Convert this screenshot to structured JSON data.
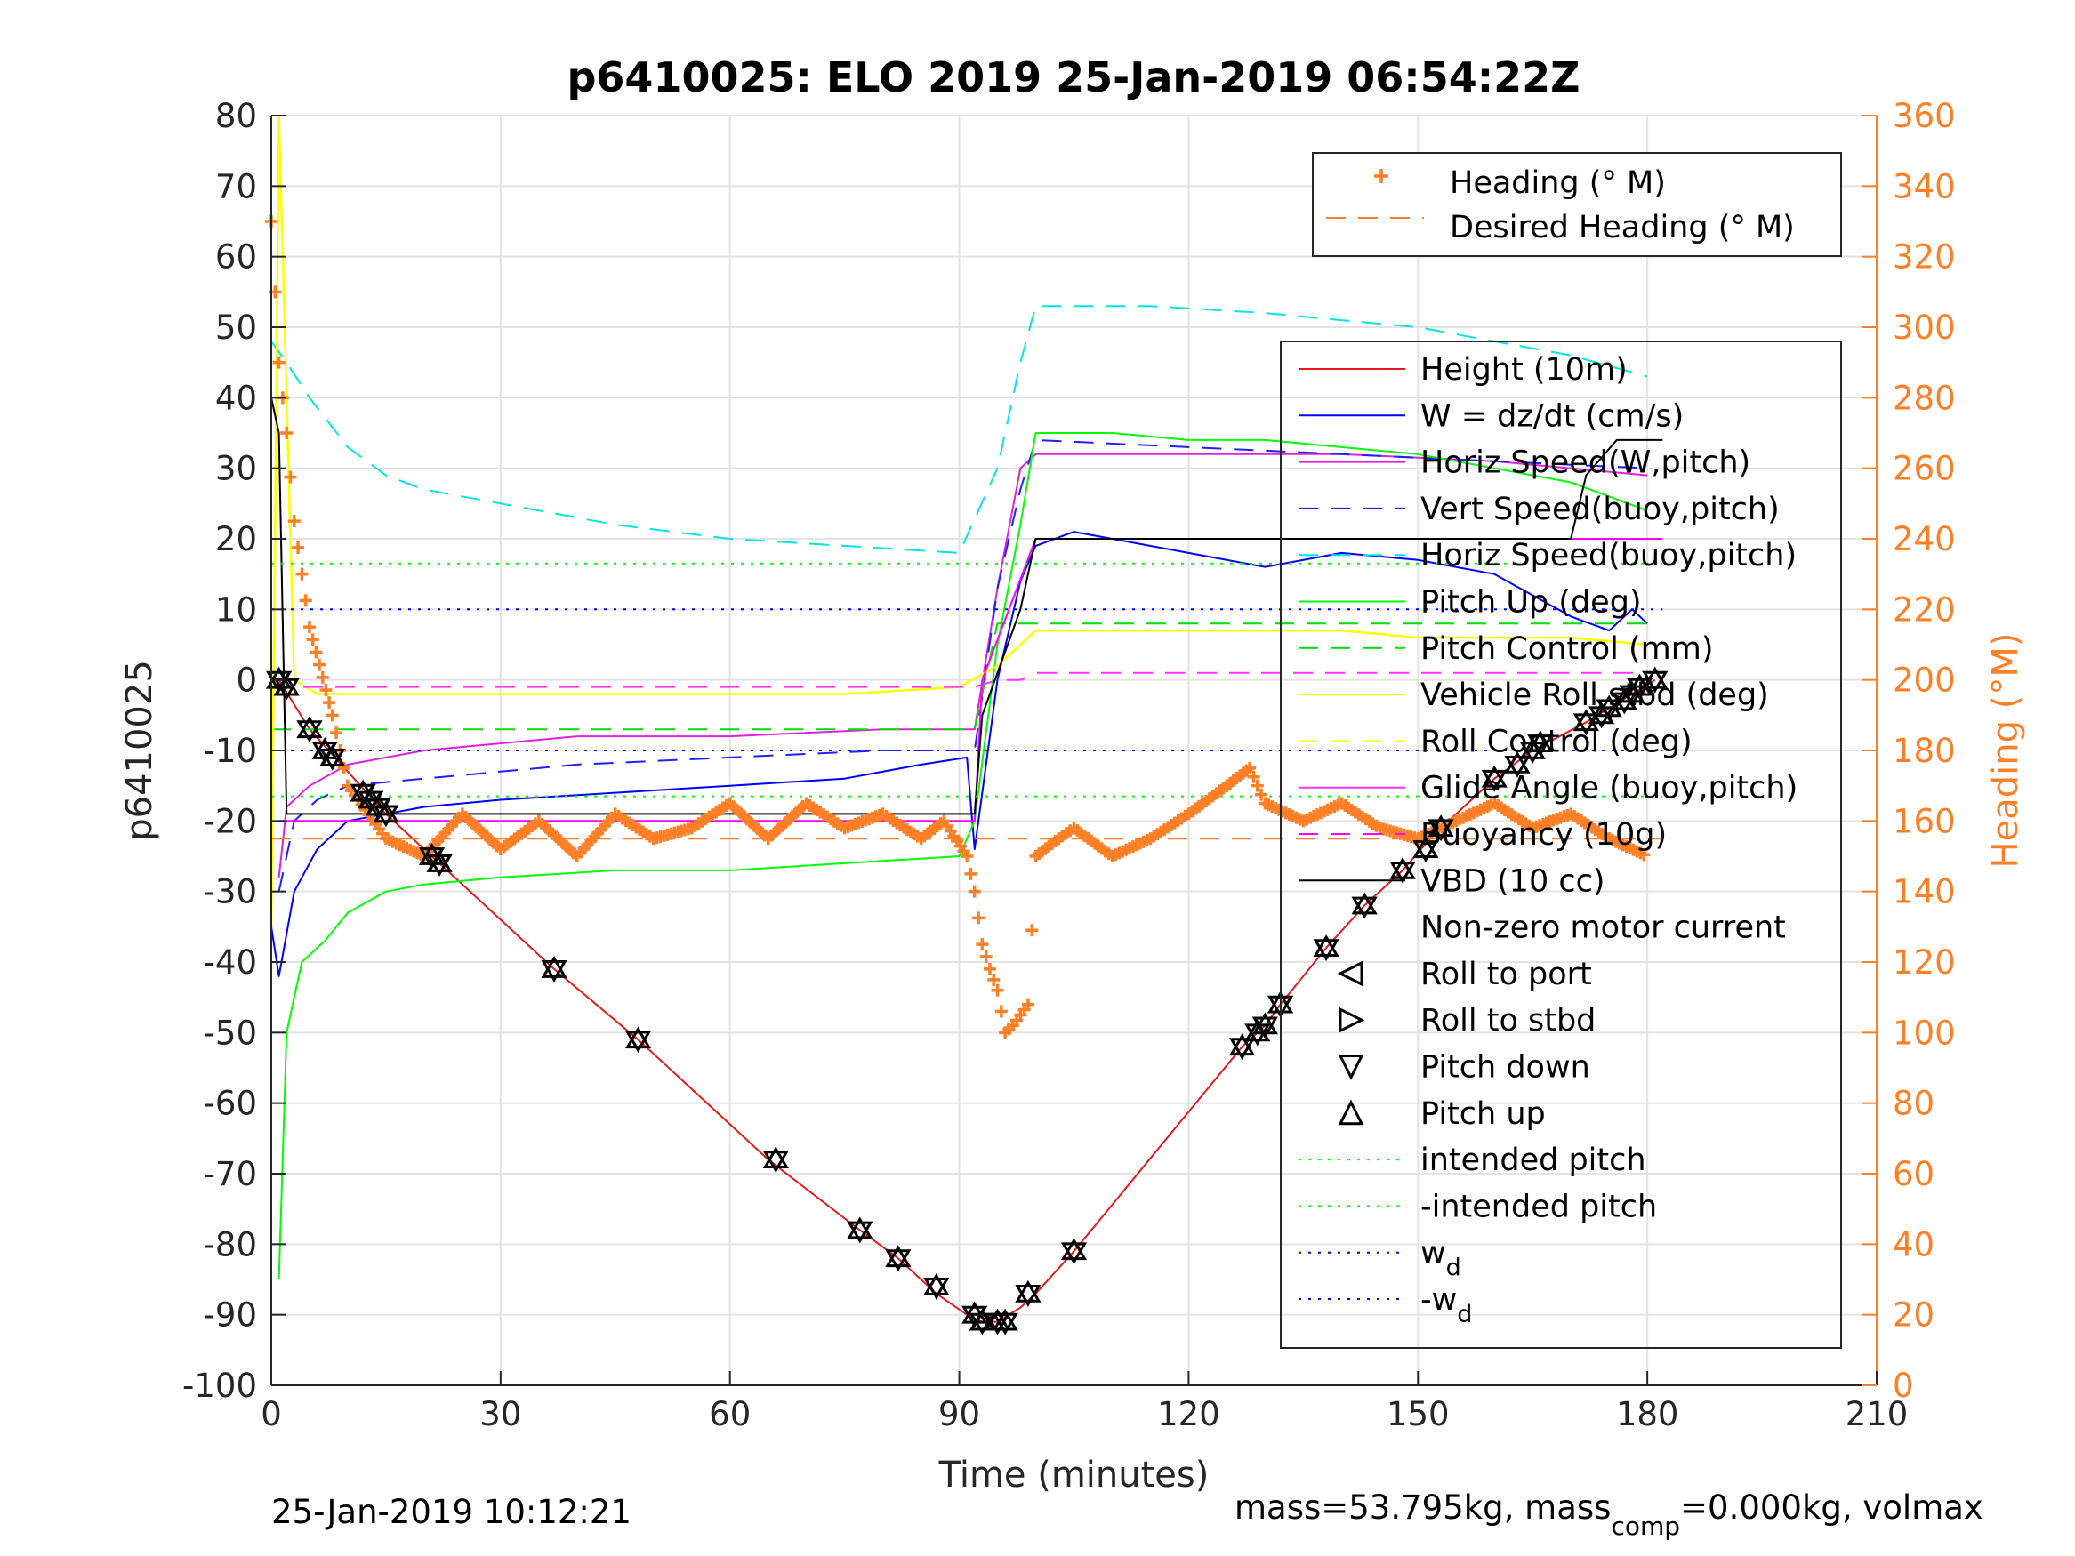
{
  "chart_data": {
    "type": "line",
    "title": "p6410025: ELO 2019 25-Jan-2019 06:54:22Z",
    "xlabel": "Time (minutes)",
    "ylabel": "p6410025",
    "y2label": "Heading (°M)",
    "xlim": [
      0,
      210
    ],
    "ylim": [
      -100,
      80
    ],
    "y2lim": [
      0,
      360
    ],
    "xticks": [
      "0",
      "30",
      "60",
      "90",
      "120",
      "150",
      "180",
      "210"
    ],
    "yticks": [
      "-100",
      "-90",
      "-80",
      "-70",
      "-60",
      "-50",
      "-40",
      "-30",
      "-20",
      "-10",
      "0",
      "10",
      "20",
      "30",
      "40",
      "50",
      "60",
      "70",
      "80"
    ],
    "y2ticks": [
      "0",
      "20",
      "40",
      "60",
      "80",
      "100",
      "120",
      "140",
      "160",
      "180",
      "200",
      "220",
      "240",
      "260",
      "280",
      "300",
      "320",
      "340",
      "360"
    ],
    "grid": true,
    "colors": {
      "height": "#e41a1c",
      "w": "#0000ff",
      "horiz_speed_w": "#e020e0",
      "vert_speed_buoy": "#2020ff",
      "horiz_speed_buoy": "#00e5e5",
      "pitch_up": "#00ff00",
      "pitch_control": "#00dd00",
      "vehicle_roll": "#ffff00",
      "roll_control": "#ffff33",
      "glide_angle": "#ff33ff",
      "buoyancy": "#ff00ff",
      "vbd": "#000000",
      "heading": "#ff7f27",
      "markers": "#000000"
    },
    "legend_heading": {
      "placement": "top-right",
      "entries": [
        "Heading (° M)",
        "Desired Heading (° M)"
      ]
    },
    "legend_main": {
      "placement": "right",
      "entries": [
        "Height (10m)",
        "W = dz/dt (cm/s)",
        "Horiz Speed(W,pitch)",
        "Vert Speed(buoy,pitch)",
        "Horiz Speed(buoy,pitch)",
        "Pitch Up (deg)",
        "Pitch Control (mm)",
        "Vehicle Roll stbd (deg)",
        "Roll Control (deg)",
        "Glide Angle (buoy,pitch)",
        "Buoyancy (10g)",
        "VBD (10 cc)",
        "Non-zero motor current",
        "Roll to port",
        "Roll to stbd",
        "Pitch down",
        "Pitch up",
        "intended pitch",
        "-intended pitch",
        "w",
        "-w"
      ],
      "subscript": "d"
    },
    "series": [
      {
        "name": "Height (10m)",
        "x": [
          0,
          1,
          5,
          10,
          15,
          22,
          37,
          48,
          65,
          77,
          82,
          87,
          91,
          93,
          95,
          98,
          100,
          105,
          127,
          130,
          132,
          138,
          143,
          148,
          152,
          160,
          165,
          172,
          178,
          181
        ],
        "y": [
          0,
          0,
          -7,
          -13,
          -19,
          -26,
          -41,
          -51,
          -68,
          -78,
          -82,
          -87,
          -90,
          -91,
          -91,
          -89,
          -87,
          -81,
          -52,
          -49,
          -46,
          -38,
          -32,
          -27,
          -22,
          -14,
          -10,
          -6,
          -2,
          0
        ]
      },
      {
        "name": "W = dz/dt (cm/s)",
        "x": [
          0,
          1,
          3,
          6,
          10,
          20,
          30,
          45,
          60,
          75,
          85,
          91,
          92,
          95,
          98,
          100,
          105,
          110,
          120,
          130,
          140,
          150,
          160,
          170,
          175,
          178,
          180
        ],
        "y": [
          -35,
          -42,
          -30,
          -24,
          -20,
          -18,
          -17,
          -16,
          -15,
          -14,
          -12,
          -11,
          -24,
          0,
          14,
          19,
          21,
          20,
          18,
          16,
          18,
          17,
          15,
          9,
          7,
          10,
          8
        ]
      },
      {
        "name": "Horiz Speed(W,pitch)",
        "x": [
          1,
          2,
          5,
          10,
          20,
          40,
          60,
          80,
          92,
          95,
          98,
          100,
          120,
          140,
          160,
          170,
          180
        ],
        "y": [
          -28,
          -18,
          -15,
          -12,
          -10,
          -8,
          -8,
          -7,
          -7,
          13,
          30,
          32,
          32,
          32,
          31,
          30,
          29
        ]
      },
      {
        "name": "Vert Speed(buoy,pitch)",
        "x": [
          1,
          3,
          6,
          10,
          20,
          40,
          60,
          80,
          92,
          95,
          98,
          100,
          120,
          140,
          160,
          180
        ],
        "y": [
          -30,
          -20,
          -17,
          -15,
          -14,
          -12,
          -11,
          -10,
          -10,
          13,
          27,
          34,
          33,
          32,
          31,
          30
        ]
      },
      {
        "name": "Horiz Speed(buoy,pitch)",
        "x": [
          0,
          2,
          5,
          10,
          15,
          20,
          30,
          45,
          60,
          75,
          90,
          95,
          98,
          100,
          115,
          130,
          140,
          150,
          160,
          170,
          180
        ],
        "y": [
          48,
          45,
          40,
          33,
          29,
          27,
          25,
          22,
          20,
          19,
          18,
          30,
          45,
          53,
          53,
          52,
          51,
          50,
          48,
          46,
          43
        ]
      },
      {
        "name": "Pitch Up (deg)",
        "x": [
          1,
          2,
          4,
          7,
          10,
          15,
          20,
          30,
          45,
          60,
          75,
          90,
          92,
          95,
          98,
          100,
          110,
          120,
          130,
          140,
          150,
          160,
          170,
          180
        ],
        "y": [
          -85,
          -50,
          -40,
          -37,
          -33,
          -30,
          -29,
          -28,
          -27,
          -27,
          -26,
          -25,
          -20,
          5,
          22,
          35,
          35,
          34,
          34,
          33,
          32,
          30,
          28,
          24
        ]
      },
      {
        "name": "Pitch Control (mm)",
        "x": [
          0,
          5,
          20,
          40,
          60,
          80,
          92,
          95,
          100,
          120,
          140,
          160,
          180
        ],
        "y": [
          -7,
          -7,
          -7,
          -7,
          -7,
          -7,
          -7,
          8,
          8,
          8,
          8,
          8,
          8
        ]
      },
      {
        "name": "Vehicle Roll stbd (deg)",
        "x": [
          0,
          1,
          3,
          6,
          10,
          20,
          30,
          45,
          60,
          75,
          90,
          95,
          100,
          110,
          120,
          130,
          140,
          150,
          160,
          170,
          180
        ],
        "y": [
          -35,
          80,
          0,
          -2,
          -2,
          -2,
          -2,
          -2,
          -2,
          -2,
          -1,
          2,
          7,
          7,
          7,
          7,
          7,
          6,
          6,
          6,
          5
        ]
      },
      {
        "name": "Glide Angle (buoy,pitch)",
        "x": [
          0,
          2,
          5,
          10,
          15,
          20,
          30,
          45,
          60,
          75,
          90,
          92,
          95,
          98,
          100,
          120,
          140,
          160,
          180
        ],
        "y": [
          -1,
          -1,
          -1,
          -1,
          -1,
          -1,
          -1,
          -1,
          -1,
          -1,
          -1,
          -1,
          0,
          0,
          1,
          1,
          1,
          1,
          1
        ]
      },
      {
        "name": "Buoyancy (10g)",
        "x": [
          1,
          2,
          92,
          93,
          100,
          182
        ],
        "y": [
          -20,
          -20,
          -20,
          0,
          20,
          20
        ]
      },
      {
        "name": "VBD (10 cc)",
        "x": [
          0,
          1,
          2,
          92,
          93,
          98,
          100,
          170,
          172,
          176,
          180,
          182
        ],
        "y": [
          40,
          35,
          -19,
          -19,
          -5,
          10,
          20,
          20,
          29,
          34,
          34,
          34
        ]
      },
      {
        "name": "Heading (° M)",
        "axis": "right",
        "x": [
          0,
          1,
          2,
          3,
          5,
          8,
          10,
          15,
          20,
          25,
          30,
          35,
          40,
          45,
          50,
          55,
          60,
          65,
          70,
          75,
          80,
          85,
          88,
          91,
          92,
          93,
          94,
          95,
          96,
          97,
          98,
          99,
          100,
          103,
          105,
          110,
          115,
          120,
          125,
          128,
          130,
          135,
          140,
          145,
          150,
          155,
          160,
          165,
          170,
          175,
          180
        ],
        "y": [
          330,
          290,
          270,
          245,
          215,
          190,
          170,
          155,
          150,
          162,
          152,
          160,
          150,
          162,
          155,
          158,
          165,
          155,
          165,
          158,
          162,
          155,
          160,
          150,
          140,
          125,
          118,
          112,
          100,
          102,
          105,
          108,
          150,
          155,
          158,
          150,
          155,
          162,
          170,
          175,
          165,
          160,
          165,
          158,
          155,
          160,
          165,
          158,
          162,
          155,
          150
        ]
      },
      {
        "name": "Desired Heading (° M)",
        "axis": "right",
        "x": [
          0,
          90,
          182
        ],
        "y": [
          155,
          155,
          155
        ]
      },
      {
        "name": "intended pitch",
        "x": [
          0,
          182
        ],
        "y": [
          16.5,
          16.5
        ]
      },
      {
        "name": "-intended pitch",
        "x": [
          0,
          182
        ],
        "y": [
          -16.5,
          -16.5
        ]
      },
      {
        "name": "w",
        "x": [
          0,
          182
        ],
        "y": [
          10,
          10
        ]
      },
      {
        "name": "-w",
        "x": [
          0,
          182
        ],
        "y": [
          -10,
          -10
        ]
      }
    ],
    "markers": [
      {
        "x": 1,
        "y": 0
      },
      {
        "x": 2,
        "y": -1
      },
      {
        "x": 5,
        "y": -7
      },
      {
        "x": 7,
        "y": -10
      },
      {
        "x": 8,
        "y": -11
      },
      {
        "x": 12,
        "y": -16
      },
      {
        "x": 13,
        "y": -17
      },
      {
        "x": 14,
        "y": -18
      },
      {
        "x": 15,
        "y": -19
      },
      {
        "x": 21,
        "y": -25
      },
      {
        "x": 22,
        "y": -26
      },
      {
        "x": 37,
        "y": -41
      },
      {
        "x": 48,
        "y": -51
      },
      {
        "x": 66,
        "y": -68
      },
      {
        "x": 77,
        "y": -78
      },
      {
        "x": 82,
        "y": -82
      },
      {
        "x": 87,
        "y": -86
      },
      {
        "x": 92,
        "y": -90
      },
      {
        "x": 93,
        "y": -91
      },
      {
        "x": 95,
        "y": -91
      },
      {
        "x": 96,
        "y": -91
      },
      {
        "x": 99,
        "y": -87
      },
      {
        "x": 105,
        "y": -81
      },
      {
        "x": 127,
        "y": -52
      },
      {
        "x": 129,
        "y": -50
      },
      {
        "x": 130,
        "y": -49
      },
      {
        "x": 132,
        "y": -46
      },
      {
        "x": 138,
        "y": -38
      },
      {
        "x": 143,
        "y": -32
      },
      {
        "x": 148,
        "y": -27
      },
      {
        "x": 151,
        "y": -24
      },
      {
        "x": 153,
        "y": -21
      },
      {
        "x": 160,
        "y": -14
      },
      {
        "x": 163,
        "y": -12
      },
      {
        "x": 165,
        "y": -10
      },
      {
        "x": 166,
        "y": -9
      },
      {
        "x": 172,
        "y": -6
      },
      {
        "x": 174,
        "y": -5
      },
      {
        "x": 175,
        "y": -4
      },
      {
        "x": 177,
        "y": -3
      },
      {
        "x": 178,
        "y": -2
      },
      {
        "x": 179,
        "y": -1
      },
      {
        "x": 181,
        "y": 0
      }
    ]
  },
  "footer": {
    "timestamp": "25-Jan-2019 10:12:21",
    "mass_text": "mass=53.795kg, mass",
    "mass_sub": "comp",
    "mass_rest": "=0.000kg, volmax"
  }
}
